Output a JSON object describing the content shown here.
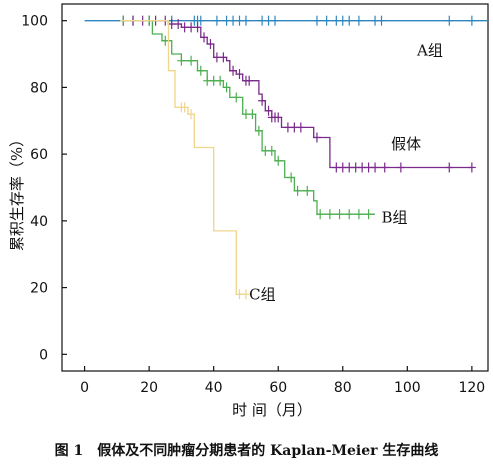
{
  "caption": "图 1　假体及不同肿瘤分期患者的 Kaplan-Meier 生存曲线",
  "chart_data": {
    "type": "line",
    "title": "",
    "xlabel": "时 间（月）",
    "ylabel": "累积生存率（%）",
    "xlim": [
      -7,
      125
    ],
    "ylim": [
      -5,
      105
    ],
    "x_ticks": [
      0,
      20,
      40,
      60,
      80,
      100,
      120
    ],
    "y_ticks": [
      0,
      20,
      40,
      60,
      80,
      100
    ],
    "grid": false,
    "legend": "none",
    "series": [
      {
        "name": "A组",
        "color": "#2e86c1",
        "censor_glyph": "+",
        "steps": [
          [
            0,
            100
          ],
          [
            125,
            100
          ]
        ],
        "censor_x": [
          12,
          15,
          20,
          27,
          34,
          35,
          36,
          41,
          44,
          46,
          48,
          50,
          55,
          57,
          59,
          72,
          75,
          78,
          80,
          82,
          85,
          90,
          92,
          113,
          120
        ]
      },
      {
        "name": "假体",
        "color": "#7a2a8a",
        "censor_glyph": "+",
        "steps": [
          [
            11,
            100
          ],
          [
            26,
            100
          ],
          [
            26,
            99
          ],
          [
            30,
            99
          ],
          [
            30,
            98
          ],
          [
            36,
            98
          ],
          [
            36,
            95
          ],
          [
            38,
            95
          ],
          [
            38,
            93
          ],
          [
            40,
            93
          ],
          [
            40,
            89
          ],
          [
            44,
            89
          ],
          [
            44,
            88
          ],
          [
            45,
            88
          ],
          [
            45,
            85
          ],
          [
            47,
            85
          ],
          [
            47,
            84
          ],
          [
            49,
            84
          ],
          [
            49,
            82
          ],
          [
            54,
            82
          ],
          [
            54,
            78
          ],
          [
            55,
            78
          ],
          [
            55,
            76
          ],
          [
            56,
            76
          ],
          [
            56,
            73
          ],
          [
            58,
            73
          ],
          [
            58,
            71
          ],
          [
            61,
            71
          ],
          [
            61,
            68
          ],
          [
            71,
            68
          ],
          [
            71,
            65
          ],
          [
            76,
            65
          ],
          [
            76,
            56
          ],
          [
            120,
            56
          ]
        ],
        "censor_x": [
          12,
          15,
          18,
          20,
          22,
          25,
          27,
          29,
          31,
          33,
          35,
          37,
          39,
          41,
          43,
          46,
          48,
          50,
          51,
          55,
          57,
          58,
          59,
          60,
          63,
          65,
          67,
          72,
          78,
          80,
          82,
          84,
          86,
          88,
          90,
          93,
          98,
          113,
          120
        ]
      },
      {
        "name": "B组",
        "color": "#4caf50",
        "censor_glyph": "+",
        "steps": [
          [
            11,
            100
          ],
          [
            21,
            100
          ],
          [
            21,
            96
          ],
          [
            24,
            96
          ],
          [
            24,
            94
          ],
          [
            27,
            94
          ],
          [
            27,
            90
          ],
          [
            30,
            90
          ],
          [
            30,
            88
          ],
          [
            35,
            88
          ],
          [
            35,
            85
          ],
          [
            38,
            85
          ],
          [
            38,
            82
          ],
          [
            43,
            82
          ],
          [
            43,
            80
          ],
          [
            45,
            80
          ],
          [
            45,
            77
          ],
          [
            49,
            77
          ],
          [
            49,
            72
          ],
          [
            53,
            72
          ],
          [
            53,
            67
          ],
          [
            55,
            67
          ],
          [
            55,
            61
          ],
          [
            59,
            61
          ],
          [
            59,
            58
          ],
          [
            62,
            58
          ],
          [
            62,
            53
          ],
          [
            65,
            53
          ],
          [
            65,
            49
          ],
          [
            71,
            49
          ],
          [
            71,
            46
          ],
          [
            72,
            46
          ],
          [
            72,
            42
          ],
          [
            90,
            42
          ]
        ],
        "censor_x": [
          12,
          20,
          25,
          30,
          33,
          36,
          38,
          40,
          42,
          44,
          47,
          50,
          52,
          54,
          56,
          58,
          60,
          64,
          66,
          69,
          73,
          76,
          79,
          82,
          85,
          88
        ]
      },
      {
        "name": "C组",
        "color": "#f0d58c",
        "censor_glyph": "+",
        "steps": [
          [
            11,
            100
          ],
          [
            26,
            100
          ],
          [
            26,
            85
          ],
          [
            28,
            85
          ],
          [
            28,
            74
          ],
          [
            32,
            74
          ],
          [
            32,
            72
          ],
          [
            34,
            72
          ],
          [
            34,
            62
          ],
          [
            40,
            62
          ],
          [
            40,
            37
          ],
          [
            47,
            37
          ],
          [
            47,
            18
          ],
          [
            50,
            18
          ]
        ],
        "censor_x": [
          30,
          31,
          33,
          48,
          50
        ]
      }
    ],
    "annotations": [
      {
        "text": "A组",
        "x": 103,
        "y": 91
      },
      {
        "text": "假体",
        "x": 95,
        "y": 63
      },
      {
        "text": "B组",
        "x": 92,
        "y": 41
      },
      {
        "text": "C组",
        "x": 51,
        "y": 18
      }
    ]
  }
}
